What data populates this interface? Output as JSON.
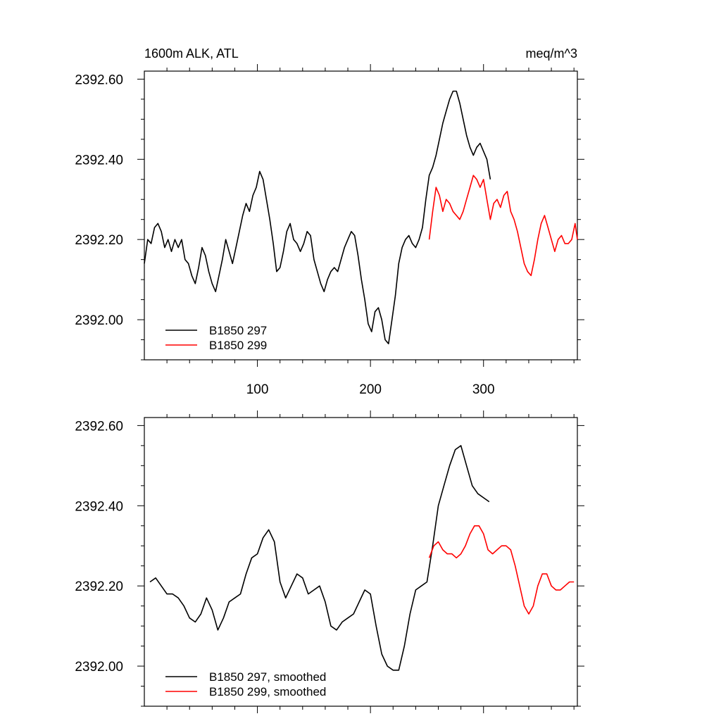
{
  "chart_data": [
    {
      "type": "line",
      "title_left": "1600m ALK, ATL",
      "title_right": "meq/m^3",
      "xlabel": "",
      "ylabel": "",
      "xlim": [
        0,
        383
      ],
      "ylim": [
        2391.9,
        2392.62
      ],
      "x_ticks": [
        100,
        200,
        300
      ],
      "x_tick_labels": [
        "100",
        "200",
        "300"
      ],
      "y_ticks": [
        2392.0,
        2392.2,
        2392.4,
        2392.6
      ],
      "y_tick_labels": [
        "2392.00",
        "2392.20",
        "2392.40",
        "2392.60"
      ],
      "grid": false,
      "legend_position": "bottom-left",
      "series": [
        {
          "name": "B1850 297",
          "color": "#000000",
          "x": [
            0,
            3,
            6,
            9,
            12,
            15,
            18,
            21,
            24,
            27,
            30,
            33,
            36,
            39,
            42,
            45,
            48,
            51,
            54,
            57,
            60,
            63,
            66,
            69,
            72,
            75,
            78,
            81,
            84,
            87,
            90,
            93,
            96,
            99,
            102,
            105,
            108,
            111,
            114,
            117,
            120,
            123,
            126,
            129,
            132,
            135,
            138,
            141,
            144,
            147,
            150,
            153,
            156,
            159,
            162,
            165,
            168,
            171,
            174,
            177,
            180,
            183,
            186,
            189,
            192,
            195,
            198,
            201,
            204,
            207,
            210,
            213,
            216,
            219,
            222,
            225,
            228,
            231,
            234,
            237,
            240,
            243,
            246,
            249,
            252,
            255,
            258,
            261,
            264,
            267,
            270,
            273,
            276,
            279,
            282,
            285,
            288,
            291,
            294,
            297,
            300,
            303,
            306
          ],
          "values": [
            2392.14,
            2392.2,
            2392.19,
            2392.23,
            2392.24,
            2392.22,
            2392.18,
            2392.2,
            2392.17,
            2392.2,
            2392.18,
            2392.2,
            2392.15,
            2392.14,
            2392.11,
            2392.09,
            2392.13,
            2392.18,
            2392.16,
            2392.12,
            2392.09,
            2392.07,
            2392.11,
            2392.15,
            2392.2,
            2392.17,
            2392.14,
            2392.18,
            2392.22,
            2392.26,
            2392.29,
            2392.27,
            2392.31,
            2392.33,
            2392.37,
            2392.35,
            2392.3,
            2392.25,
            2392.19,
            2392.12,
            2392.13,
            2392.17,
            2392.22,
            2392.24,
            2392.2,
            2392.19,
            2392.17,
            2392.19,
            2392.22,
            2392.21,
            2392.15,
            2392.12,
            2392.09,
            2392.07,
            2392.1,
            2392.12,
            2392.13,
            2392.12,
            2392.15,
            2392.18,
            2392.2,
            2392.22,
            2392.21,
            2392.16,
            2392.1,
            2392.05,
            2391.99,
            2391.97,
            2392.02,
            2392.03,
            2392.0,
            2391.95,
            2391.94,
            2392.0,
            2392.06,
            2392.14,
            2392.18,
            2392.2,
            2392.21,
            2392.19,
            2392.18,
            2392.2,
            2392.23,
            2392.3,
            2392.36,
            2392.38,
            2392.41,
            2392.45,
            2392.49,
            2392.52,
            2392.55,
            2392.57,
            2392.57,
            2392.54,
            2392.5,
            2392.46,
            2392.43,
            2392.41,
            2392.43,
            2392.44,
            2392.42,
            2392.4,
            2392.35
          ]
        },
        {
          "name": "B1850 299",
          "color": "#ff0000",
          "x": [
            252,
            255,
            258,
            261,
            264,
            267,
            270,
            273,
            276,
            279,
            282,
            285,
            288,
            291,
            294,
            297,
            300,
            303,
            306,
            309,
            312,
            315,
            318,
            321,
            324,
            327,
            330,
            333,
            336,
            339,
            342,
            345,
            348,
            351,
            354,
            357,
            360,
            363,
            366,
            369,
            372,
            375,
            378,
            381,
            383
          ],
          "values": [
            2392.2,
            2392.27,
            2392.33,
            2392.31,
            2392.27,
            2392.3,
            2392.29,
            2392.27,
            2392.26,
            2392.25,
            2392.27,
            2392.3,
            2392.33,
            2392.36,
            2392.35,
            2392.33,
            2392.35,
            2392.3,
            2392.25,
            2392.29,
            2392.3,
            2392.28,
            2392.31,
            2392.32,
            2392.27,
            2392.25,
            2392.22,
            2392.18,
            2392.14,
            2392.12,
            2392.11,
            2392.15,
            2392.2,
            2392.24,
            2392.26,
            2392.23,
            2392.2,
            2392.17,
            2392.2,
            2392.21,
            2392.19,
            2392.19,
            2392.2,
            2392.24,
            2392.2
          ]
        }
      ]
    },
    {
      "type": "line",
      "title_left": "",
      "title_right": "",
      "xlabel": "",
      "ylabel": "",
      "xlim": [
        0,
        383
      ],
      "ylim": [
        2391.9,
        2392.62
      ],
      "x_ticks": [
        100,
        200,
        300
      ],
      "x_tick_labels": [],
      "y_ticks": [
        2392.0,
        2392.2,
        2392.4,
        2392.6
      ],
      "y_tick_labels": [
        "2392.00",
        "2392.20",
        "2392.40",
        "2392.60"
      ],
      "grid": false,
      "legend_position": "bottom-left",
      "series": [
        {
          "name": "B1850 297, smoothed",
          "color": "#000000",
          "x": [
            5,
            10,
            15,
            20,
            25,
            30,
            35,
            40,
            45,
            50,
            55,
            60,
            65,
            70,
            75,
            80,
            85,
            90,
            95,
            100,
            105,
            110,
            115,
            120,
            125,
            130,
            135,
            140,
            145,
            150,
            155,
            160,
            165,
            170,
            175,
            180,
            185,
            190,
            195,
            200,
            205,
            210,
            215,
            220,
            225,
            230,
            235,
            240,
            245,
            250,
            255,
            260,
            265,
            270,
            275,
            280,
            285,
            290,
            295,
            300,
            305
          ],
          "values": [
            2392.21,
            2392.22,
            2392.2,
            2392.18,
            2392.18,
            2392.17,
            2392.15,
            2392.12,
            2392.11,
            2392.13,
            2392.17,
            2392.14,
            2392.09,
            2392.12,
            2392.16,
            2392.17,
            2392.18,
            2392.23,
            2392.27,
            2392.28,
            2392.32,
            2392.34,
            2392.31,
            2392.21,
            2392.17,
            2392.2,
            2392.23,
            2392.22,
            2392.18,
            2392.19,
            2392.2,
            2392.16,
            2392.1,
            2392.09,
            2392.11,
            2392.12,
            2392.13,
            2392.16,
            2392.19,
            2392.18,
            2392.1,
            2392.03,
            2392.0,
            2391.99,
            2391.99,
            2392.05,
            2392.13,
            2392.19,
            2392.2,
            2392.21,
            2392.3,
            2392.4,
            2392.45,
            2392.5,
            2392.54,
            2392.55,
            2392.5,
            2392.45,
            2392.43,
            2392.42,
            2392.41
          ]
        },
        {
          "name": "B1850 299, smoothed",
          "color": "#ff0000",
          "x": [
            252,
            256,
            260,
            264,
            268,
            272,
            276,
            280,
            284,
            288,
            292,
            296,
            300,
            304,
            308,
            312,
            316,
            320,
            324,
            328,
            332,
            336,
            340,
            344,
            348,
            352,
            356,
            360,
            364,
            368,
            372,
            376,
            380
          ],
          "values": [
            2392.27,
            2392.3,
            2392.31,
            2392.29,
            2392.28,
            2392.28,
            2392.27,
            2392.28,
            2392.3,
            2392.33,
            2392.35,
            2392.35,
            2392.33,
            2392.29,
            2392.28,
            2392.29,
            2392.3,
            2392.3,
            2392.29,
            2392.25,
            2392.2,
            2392.15,
            2392.13,
            2392.15,
            2392.2,
            2392.23,
            2392.23,
            2392.2,
            2392.19,
            2392.19,
            2392.2,
            2392.21,
            2392.21
          ]
        }
      ]
    }
  ]
}
